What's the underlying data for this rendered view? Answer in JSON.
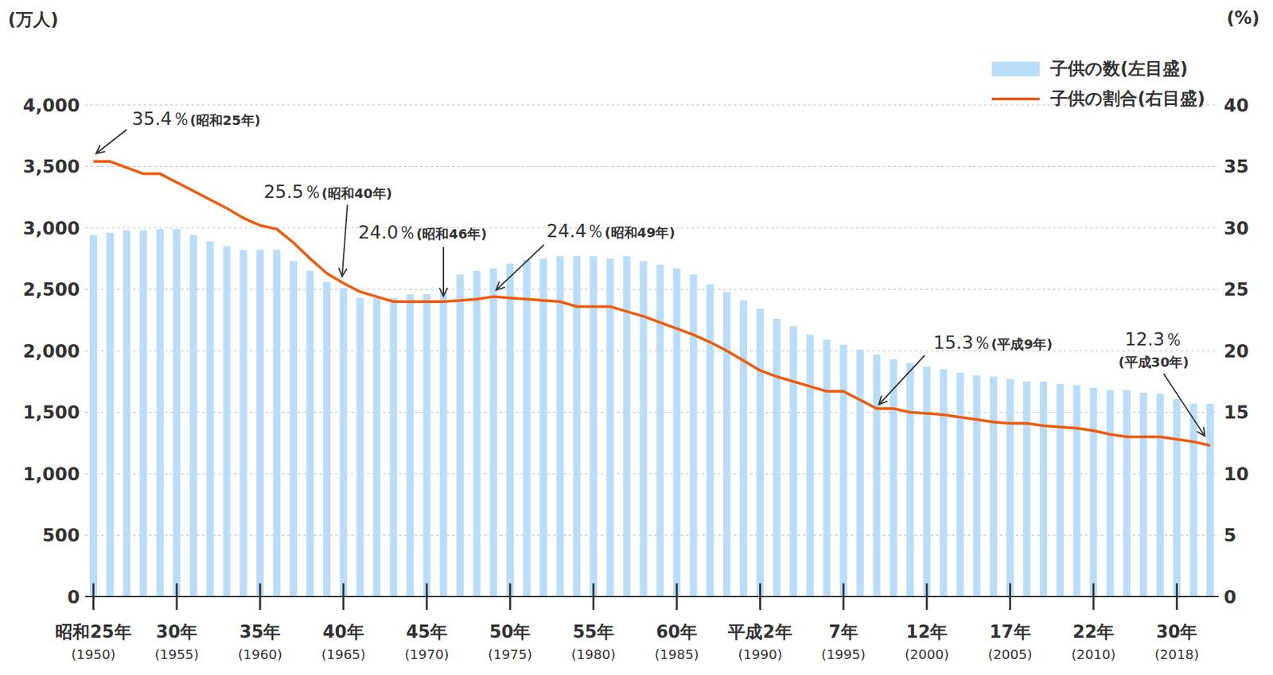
{
  "chart_data": {
    "type": "bar",
    "y_label": "(万人)",
    "y2_label": "(%)",
    "categories": [
      "昭和25年(1950)",
      null,
      null,
      null,
      null,
      "30年(1955)",
      null,
      null,
      null,
      null,
      "35年(1960)",
      null,
      null,
      null,
      null,
      "40年(1965)",
      null,
      null,
      null,
      null,
      "45年(1970)",
      null,
      null,
      null,
      null,
      "50年(1975)",
      null,
      null,
      null,
      null,
      "55年(1980)",
      null,
      null,
      null,
      null,
      "60年(1985)",
      null,
      null,
      null,
      null,
      "平成2年(1990)",
      null,
      null,
      null,
      null,
      "7年(1995)",
      null,
      null,
      null,
      null,
      "12年(2000)",
      null,
      null,
      null,
      null,
      "17年(2005)",
      null,
      null,
      null,
      null,
      "22年(2010)",
      null,
      null,
      null,
      null,
      "30年(2018)",
      null,
      null
    ],
    "series": [
      {
        "name": "子供の数(左目盛)",
        "type": "bar",
        "color": "#b9ddf8",
        "values": [
          2940,
          2960,
          2980,
          2980,
          2990,
          2990,
          2940,
          2890,
          2850,
          2820,
          2820,
          2820,
          2730,
          2650,
          2560,
          2510,
          2430,
          2430,
          2430,
          2460,
          2460,
          2480,
          2620,
          2650,
          2670,
          2710,
          2740,
          2750,
          2770,
          2770,
          2770,
          2750,
          2770,
          2730,
          2700,
          2670,
          2620,
          2540,
          2480,
          2410,
          2340,
          2260,
          2200,
          2130,
          2090,
          2050,
          2010,
          1970,
          1930,
          1900,
          1870,
          1850,
          1820,
          1800,
          1790,
          1770,
          1750,
          1750,
          1730,
          1720,
          1700,
          1680,
          1680,
          1660,
          1650,
          1610,
          1570,
          1570
        ]
      },
      {
        "name": "子供の割合(右目盛)",
        "type": "line",
        "axis": "y2",
        "color": "#f05a0a",
        "values": [
          35.4,
          35.4,
          34.9,
          34.4,
          34.4,
          33.7,
          33.0,
          32.3,
          31.6,
          30.8,
          30.2,
          29.9,
          28.8,
          27.5,
          26.3,
          25.5,
          24.8,
          24.4,
          24.0,
          24.0,
          24.0,
          24.0,
          24.1,
          24.2,
          24.4,
          24.3,
          24.2,
          24.1,
          24.0,
          23.6,
          23.6,
          23.6,
          23.2,
          22.8,
          22.3,
          21.8,
          21.3,
          20.7,
          20.0,
          19.2,
          18.4,
          17.9,
          17.5,
          17.1,
          16.7,
          16.7,
          16.0,
          15.3,
          15.3,
          15.0,
          14.9,
          14.8,
          14.6,
          14.4,
          14.2,
          14.1,
          14.1,
          13.9,
          13.8,
          13.7,
          13.5,
          13.2,
          13.0,
          13.0,
          13.0,
          12.8,
          12.6,
          12.3
        ]
      }
    ],
    "ylim": [
      0,
      4000
    ],
    "yticks": [
      0,
      500,
      {
        "value": 1000,
        "label": "1,000"
      },
      {
        "value": 1500,
        "label": "1,500"
      },
      {
        "value": 2000,
        "label": "2,000"
      },
      {
        "value": 2500,
        "label": "2,500"
      },
      {
        "value": 3000,
        "label": "3,000"
      },
      {
        "value": 3500,
        "label": "3,500"
      },
      {
        "value": 4000,
        "label": "4,000"
      }
    ],
    "y2lim": [
      0,
      40
    ],
    "y2ticks": [
      0,
      5,
      10,
      15,
      20,
      25,
      30,
      35,
      40
    ],
    "grid": true,
    "legend": "top-right",
    "annotations": [
      {
        "at": 0,
        "text": "35.4％(昭和25年)"
      },
      {
        "at": 15,
        "text": "25.5％(昭和40年)"
      },
      {
        "at": 21,
        "text": "24.0％(昭和46年)"
      },
      {
        "at": 24,
        "text": "24.4％(昭和49年)"
      },
      {
        "at": 47,
        "text": "15.3％(平成9年)"
      },
      {
        "at": 67,
        "text": "12.3％(平成30年)"
      }
    ]
  }
}
